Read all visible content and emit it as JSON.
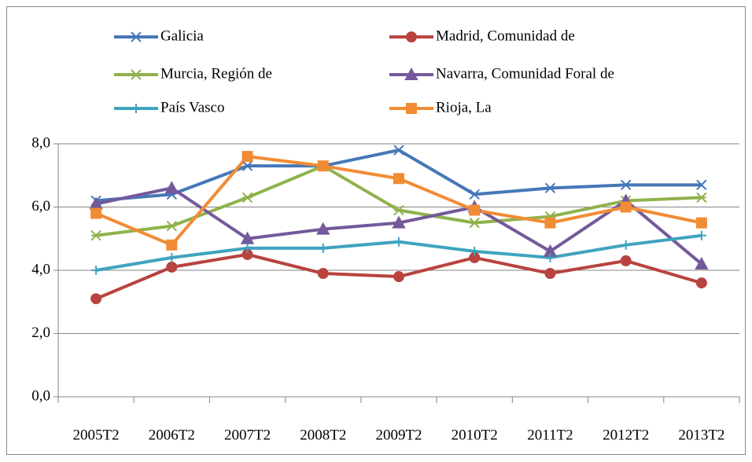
{
  "chart_data": {
    "type": "line",
    "categories": [
      "2005T2",
      "2006T2",
      "2007T2",
      "2008T2",
      "2009T2",
      "2010T2",
      "2011T2",
      "2012T2",
      "2013T2"
    ],
    "series": [
      {
        "name": "Galicia",
        "color": "#4677b8",
        "marker": "x",
        "values": [
          6.2,
          6.4,
          7.3,
          7.3,
          7.8,
          6.4,
          6.6,
          6.7,
          6.7
        ]
      },
      {
        "name": "Madrid, Comunidad de",
        "color": "#b8433f",
        "marker": "circle",
        "values": [
          3.1,
          4.1,
          4.5,
          3.9,
          3.8,
          4.4,
          3.9,
          4.3,
          3.6
        ]
      },
      {
        "name": "Murcia, Región de",
        "color": "#8fb24c",
        "marker": "asterisk",
        "values": [
          5.1,
          5.4,
          6.3,
          7.3,
          5.9,
          5.5,
          5.7,
          6.2,
          6.3
        ]
      },
      {
        "name": "Navarra, Comunidad Foral de",
        "color": "#74599a",
        "marker": "triangle",
        "values": [
          6.1,
          6.6,
          5.0,
          5.3,
          5.5,
          6.0,
          4.6,
          6.2,
          4.2
        ]
      },
      {
        "name": "País Vasco",
        "color": "#3fa3bf",
        "marker": "plus",
        "values": [
          4.0,
          4.4,
          4.7,
          4.7,
          4.9,
          4.6,
          4.4,
          4.8,
          5.1
        ]
      },
      {
        "name": "Rioja, La",
        "color": "#f18c35",
        "marker": "square",
        "values": [
          5.8,
          4.8,
          7.6,
          7.3,
          6.9,
          5.9,
          5.5,
          6.0,
          5.5
        ]
      }
    ],
    "ylim": [
      0,
      8
    ],
    "yticks": [
      {
        "value": 0,
        "label": "0,0"
      },
      {
        "value": 2,
        "label": "2,0"
      },
      {
        "value": 4,
        "label": "4,0"
      },
      {
        "value": 6,
        "label": "6,0"
      },
      {
        "value": 8,
        "label": "8,0"
      }
    ],
    "grid": true,
    "legend": "top"
  }
}
